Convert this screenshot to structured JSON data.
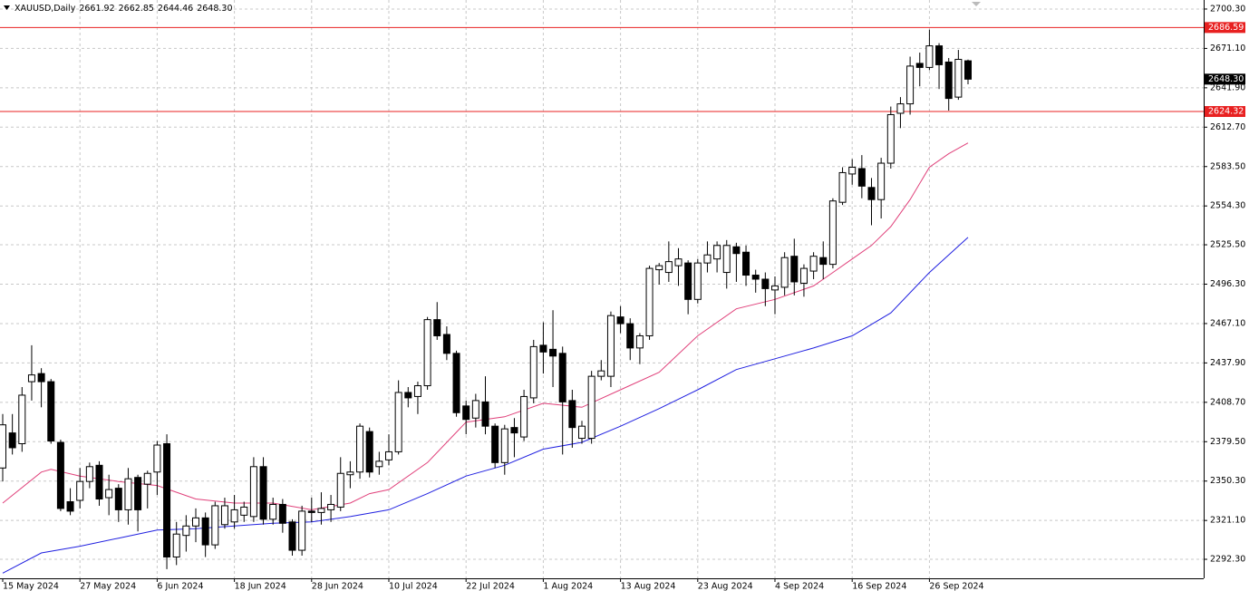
{
  "chart_data": {
    "type": "candlestick",
    "symbol": "XAUUSD,Daily",
    "header_values": [
      "2661.92",
      "2662.85",
      "2644.46",
      "2648.30"
    ],
    "categories": [
      "15 May 2024",
      null,
      null,
      null,
      null,
      null,
      null,
      null,
      "27 May 2024",
      null,
      null,
      null,
      null,
      null,
      null,
      null,
      "6 Jun 2024",
      null,
      null,
      null,
      null,
      null,
      null,
      null,
      "18 Jun 2024",
      null,
      null,
      null,
      null,
      null,
      null,
      null,
      "28 Jun 2024",
      null,
      null,
      null,
      null,
      null,
      null,
      null,
      "10 Jul 2024",
      null,
      null,
      null,
      null,
      null,
      null,
      null,
      "22 Jul 2024",
      null,
      null,
      null,
      null,
      null,
      null,
      null,
      "1 Aug 2024",
      null,
      null,
      null,
      null,
      null,
      null,
      null,
      "13 Aug 2024",
      null,
      null,
      null,
      null,
      null,
      null,
      null,
      "23 Aug 2024",
      null,
      null,
      null,
      null,
      null,
      null,
      null,
      "4 Sep 2024",
      null,
      null,
      null,
      null,
      null,
      null,
      null,
      "16 Sep 2024",
      null,
      null,
      null,
      null,
      null,
      null,
      null,
      "26 Sep 2024",
      null,
      null,
      null,
      null
    ],
    "open": [
      2360,
      2386,
      2378,
      2424,
      2430,
      2424,
      2379,
      2335,
      2336,
      2350,
      2362,
      2338,
      2345,
      2329,
      2353,
      2348,
      2357,
      2378,
      2294,
      2310,
      2317,
      2323,
      2303,
      2318,
      2320,
      2325,
      2324,
      2361,
      2322,
      2333,
      2320,
      2299,
      2328,
      2327,
      2329,
      2331,
      2355,
      2357,
      2387,
      2361,
      2366,
      2372,
      2416,
      2413,
      2421,
      2470,
      2459,
      2445,
      2406,
      2397,
      2409,
      2391,
      2364,
      2390,
      2383,
      2412,
      2451,
      2448,
      2445,
      2410,
      2382,
      2382,
      2428,
      2428,
      2472,
      2467,
      2449,
      2458,
      2507,
      2505,
      2510,
      2512,
      2485,
      2512,
      2515,
      2505,
      2524,
      2520,
      2503,
      2500,
      2492,
      2494,
      2517,
      2497,
      2506,
      2516,
      2511,
      2557,
      2578,
      2582,
      2568,
      2559,
      2586,
      2623,
      2630,
      2660,
      2657,
      2673,
      2661,
      2635,
      2661.92
    ],
    "high": [
      2400,
      2400,
      2420,
      2451,
      2434,
      2426,
      2381,
      2345,
      2360,
      2364,
      2365,
      2355,
      2348,
      2360,
      2355,
      2358,
      2380,
      2385,
      2320,
      2325,
      2330,
      2327,
      2335,
      2338,
      2340,
      2335,
      2368,
      2368,
      2338,
      2337,
      2322,
      2332,
      2338,
      2342,
      2340,
      2368,
      2365,
      2393,
      2390,
      2372,
      2385,
      2425,
      2420,
      2424,
      2472,
      2483,
      2465,
      2447,
      2410,
      2415,
      2428,
      2393,
      2392,
      2397,
      2418,
      2455,
      2468,
      2477,
      2450,
      2418,
      2395,
      2432,
      2440,
      2476,
      2480,
      2471,
      2460,
      2510,
      2512,
      2528,
      2523,
      2514,
      2515,
      2528,
      2528,
      2529,
      2527,
      2525,
      2507,
      2505,
      2502,
      2520,
      2530,
      2511,
      2520,
      2528,
      2560,
      2583,
      2589,
      2592,
      2575,
      2590,
      2628,
      2635,
      2665,
      2668,
      2685,
      2675,
      2664,
      2670,
      2662.85
    ],
    "low": [
      2350,
      2370,
      2372,
      2410,
      2405,
      2378,
      2328,
      2325,
      2330,
      2345,
      2332,
      2325,
      2320,
      2318,
      2313,
      2330,
      2340,
      2285,
      2288,
      2298,
      2305,
      2294,
      2300,
      2315,
      2315,
      2320,
      2320,
      2318,
      2318,
      2312,
      2295,
      2295,
      2320,
      2318,
      2320,
      2328,
      2345,
      2352,
      2353,
      2355,
      2362,
      2370,
      2405,
      2400,
      2418,
      2455,
      2440,
      2398,
      2385,
      2390,
      2385,
      2360,
      2355,
      2368,
      2380,
      2408,
      2430,
      2420,
      2370,
      2375,
      2378,
      2378,
      2425,
      2420,
      2460,
      2440,
      2437,
      2455,
      2496,
      2498,
      2495,
      2474,
      2482,
      2505,
      2505,
      2493,
      2498,
      2495,
      2490,
      2480,
      2474,
      2488,
      2488,
      2487,
      2500,
      2500,
      2508,
      2555,
      2570,
      2560,
      2540,
      2545,
      2582,
      2612,
      2622,
      2643,
      2655,
      2641,
      2625,
      2633,
      2644.46
    ],
    "close": [
      2392,
      2375,
      2414,
      2429,
      2424,
      2380,
      2330,
      2328,
      2350,
      2361,
      2337,
      2344,
      2329,
      2352,
      2329,
      2356,
      2377,
      2294,
      2311,
      2317,
      2323,
      2303,
      2332,
      2332,
      2329,
      2331,
      2361,
      2322,
      2333,
      2319,
      2299,
      2328,
      2327,
      2330,
      2333,
      2356,
      2357,
      2391,
      2357,
      2365,
      2372,
      2416,
      2412,
      2421,
      2470,
      2458,
      2445,
      2401,
      2396,
      2410,
      2391,
      2364,
      2389,
      2386,
      2413,
      2450,
      2446,
      2443,
      2409,
      2390,
      2391,
      2428,
      2432,
      2473,
      2467,
      2449,
      2458,
      2508,
      2510,
      2513,
      2515,
      2485,
      2512,
      2518,
      2525,
      2525,
      2519,
      2503,
      2500,
      2493,
      2495,
      2516,
      2498,
      2508,
      2517,
      2511,
      2558,
      2579,
      2583,
      2569,
      2559,
      2586,
      2622,
      2630,
      2658,
      2657,
      2673,
      2659,
      2634,
      2663,
      2648.3
    ],
    "up_color": "#ffffff",
    "down_color": "#000000",
    "outline_color": "#000000",
    "lines": [
      {
        "color": "#e0407a",
        "x": [
          0,
          4,
          5,
          8,
          12,
          16,
          20,
          24,
          28,
          32,
          36,
          38,
          40,
          44,
          48,
          52,
          56,
          60,
          64,
          68,
          72,
          76,
          80,
          84,
          86,
          88,
          90,
          92,
          94,
          96,
          98,
          100
        ],
        "values": [
          2334,
          2357,
          2359,
          2354,
          2350,
          2347,
          2337,
          2334,
          2334,
          2329,
          2334,
          2341,
          2344,
          2364,
          2394,
          2398,
          2408,
          2405,
          2418,
          2431,
          2458,
          2478,
          2485,
          2495,
          2505,
          2515,
          2525,
          2539,
          2559,
          2583,
          2593,
          2601
        ]
      },
      {
        "color": "#2020e0",
        "x": [
          0,
          4,
          8,
          12,
          16,
          20,
          24,
          28,
          32,
          36,
          40,
          44,
          48,
          52,
          56,
          60,
          64,
          68,
          72,
          76,
          80,
          84,
          88,
          92,
          96,
          100
        ],
        "values": [
          2282,
          2297,
          2302,
          2308,
          2314,
          2315,
          2317,
          2319,
          2320,
          2324,
          2329,
          2341,
          2354,
          2362,
          2374,
          2379,
          2391,
          2404,
          2418,
          2433,
          2441,
          2449,
          2458,
          2475,
          2505,
          2531
        ]
      }
    ],
    "levels": [
      {
        "value": 2686.59,
        "label": "2686.59"
      },
      {
        "value": 2624.32,
        "label": "2624.32"
      }
    ],
    "level_color": "#e82020",
    "current_price": {
      "value": 2648.3,
      "label": "2648.30"
    },
    "ylim": [
      2278.2,
      2707.0
    ],
    "yticks": [
      {
        "value": 2700.3,
        "label": "2700.30"
      },
      {
        "value": 2671.1,
        "label": "2671.10"
      },
      {
        "value": 2641.9,
        "label": "2641.90"
      },
      {
        "value": 2612.7,
        "label": "2612.70"
      },
      {
        "value": 2583.5,
        "label": "2583.50"
      },
      {
        "value": 2554.3,
        "label": "2554.30"
      },
      {
        "value": 2525.5,
        "label": "2525.50"
      },
      {
        "value": 2496.3,
        "label": "2496.30"
      },
      {
        "value": 2467.1,
        "label": "2467.10"
      },
      {
        "value": 2437.9,
        "label": "2437.90"
      },
      {
        "value": 2408.7,
        "label": "2408.70"
      },
      {
        "value": 2379.5,
        "label": "2379.50"
      },
      {
        "value": 2350.3,
        "label": "2350.30"
      },
      {
        "value": 2321.1,
        "label": "2321.10"
      },
      {
        "value": 2292.3,
        "label": "2292.30"
      }
    ],
    "grid": true
  }
}
